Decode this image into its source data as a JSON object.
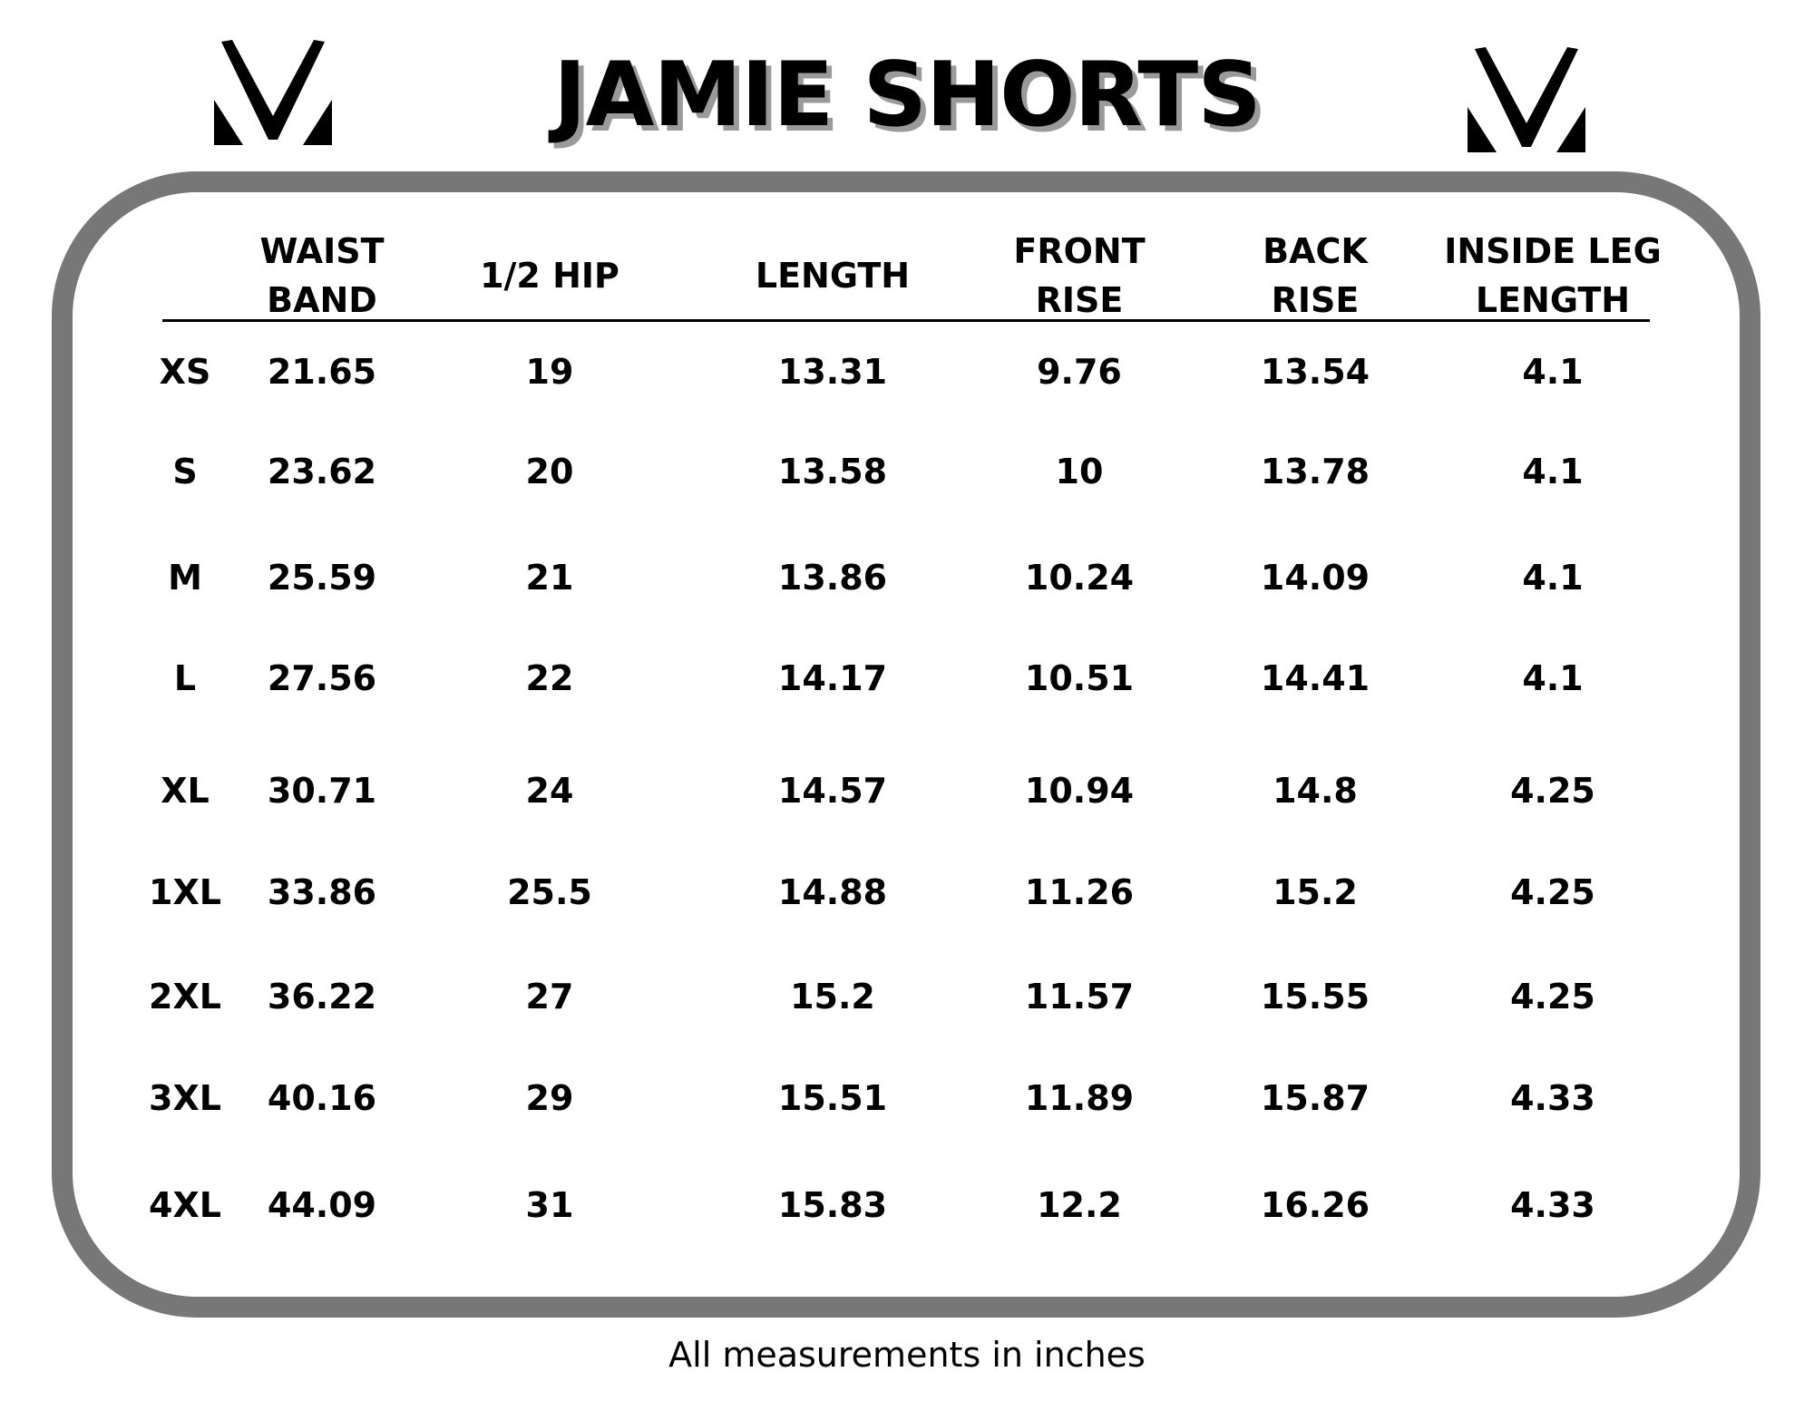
{
  "title": "JAMIE SHORTS",
  "logo": "brand-v-logo",
  "border_color": "#777777",
  "headers": [
    {
      "line1": "WAIST",
      "line2": "BAND"
    },
    {
      "line1": "1/2 HIP",
      "line2": ""
    },
    {
      "line1": "LENGTH",
      "line2": ""
    },
    {
      "line1": "FRONT",
      "line2": "RISE"
    },
    {
      "line1": "BACK",
      "line2": "RISE"
    },
    {
      "line1": "INSIDE LEG",
      "line2": "LENGTH"
    }
  ],
  "rows": [
    {
      "size": "XS",
      "values": [
        "21.65",
        "19",
        "13.31",
        "9.76",
        "13.54",
        "4.1"
      ]
    },
    {
      "size": "S",
      "values": [
        "23.62",
        "20",
        "13.58",
        "10",
        "13.78",
        "4.1"
      ]
    },
    {
      "size": "M",
      "values": [
        "25.59",
        "21",
        "13.86",
        "10.24",
        "14.09",
        "4.1"
      ]
    },
    {
      "size": "L",
      "values": [
        "27.56",
        "22",
        "14.17",
        "10.51",
        "14.41",
        "4.1"
      ]
    },
    {
      "size": "XL",
      "values": [
        "30.71",
        "24",
        "14.57",
        "10.94",
        "14.8",
        "4.25"
      ]
    },
    {
      "size": "1XL",
      "values": [
        "33.86",
        "25.5",
        "14.88",
        "11.26",
        "15.2",
        "4.25"
      ]
    },
    {
      "size": "2XL",
      "values": [
        "36.22",
        "27",
        "15.2",
        "11.57",
        "15.55",
        "4.25"
      ]
    },
    {
      "size": "3XL",
      "values": [
        "40.16",
        "29",
        "15.51",
        "11.89",
        "15.87",
        "4.33"
      ]
    },
    {
      "size": "4XL",
      "values": [
        "44.09",
        "31",
        "15.83",
        "12.2",
        "16.26",
        "4.33"
      ]
    }
  ],
  "footer": "All measurements in inches"
}
